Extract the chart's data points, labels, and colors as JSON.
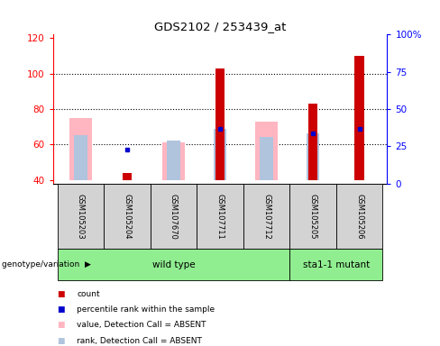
{
  "title": "GDS2102 / 253439_at",
  "samples": [
    "GSM105203",
    "GSM105204",
    "GSM107670",
    "GSM107711",
    "GSM107712",
    "GSM105205",
    "GSM105206"
  ],
  "ylim_left": [
    38,
    122
  ],
  "ylim_right": [
    0,
    100
  ],
  "yticks_left": [
    40,
    60,
    80,
    100,
    120
  ],
  "yticks_right": [
    0,
    25,
    50,
    75,
    100
  ],
  "yticklabels_right": [
    "0",
    "25",
    "50",
    "75",
    "100%"
  ],
  "count_values": [
    null,
    44,
    null,
    103,
    null,
    83,
    110
  ],
  "percentile_values": [
    null,
    57,
    null,
    69,
    null,
    66,
    69
  ],
  "absent_value_bottom": [
    40,
    null,
    40,
    40,
    40,
    40,
    40
  ],
  "absent_value_top": [
    75,
    null,
    61,
    null,
    73,
    null,
    null
  ],
  "absent_rank_bottom": [
    40,
    null,
    40,
    40,
    40,
    40,
    40
  ],
  "absent_rank_top": [
    65,
    null,
    62,
    69,
    64,
    66,
    null
  ],
  "color_count": "#cc0000",
  "color_percentile": "#0000cc",
  "color_absent_value": "#ffb6c1",
  "color_absent_rank": "#b0c4de",
  "bg_label": "#d3d3d3",
  "bg_group": "#90ee90",
  "legend_items": [
    {
      "label": "count",
      "color": "#cc0000"
    },
    {
      "label": "percentile rank within the sample",
      "color": "#0000cc"
    },
    {
      "label": "value, Detection Call = ABSENT",
      "color": "#ffb6c1"
    },
    {
      "label": "rank, Detection Call = ABSENT",
      "color": "#b0c4de"
    }
  ],
  "wt_count": 5,
  "mut_count": 2,
  "group_labels": [
    "wild type",
    "sta1-1 mutant"
  ]
}
